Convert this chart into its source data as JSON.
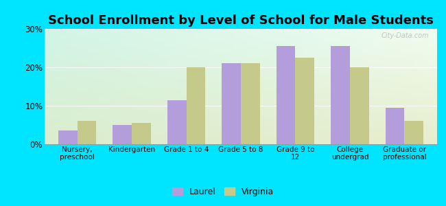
{
  "title": "School Enrollment by Level of School for Male Students",
  "categories": [
    "Nursery,\npreschool",
    "Kindergarten",
    "Grade 1 to 4",
    "Grade 5 to 8",
    "Grade 9 to\n12",
    "College\nundergrad",
    "Graduate or\nprofessional"
  ],
  "laurel_values": [
    3.5,
    5.0,
    11.5,
    21.0,
    25.5,
    25.5,
    9.5
  ],
  "virginia_values": [
    6.0,
    5.5,
    20.0,
    21.0,
    22.5,
    20.0,
    6.0
  ],
  "laurel_color": "#b39ddb",
  "virginia_color": "#c5c98a",
  "figure_facecolor": "#00e5ff",
  "ylim": [
    0,
    30
  ],
  "yticks": [
    0,
    10,
    20,
    30
  ],
  "ytick_labels": [
    "0%",
    "10%",
    "20%",
    "30%"
  ],
  "legend_labels": [
    "Laurel",
    "Virginia"
  ],
  "title_fontsize": 13,
  "bar_width": 0.35,
  "watermark": "City-Data.com"
}
